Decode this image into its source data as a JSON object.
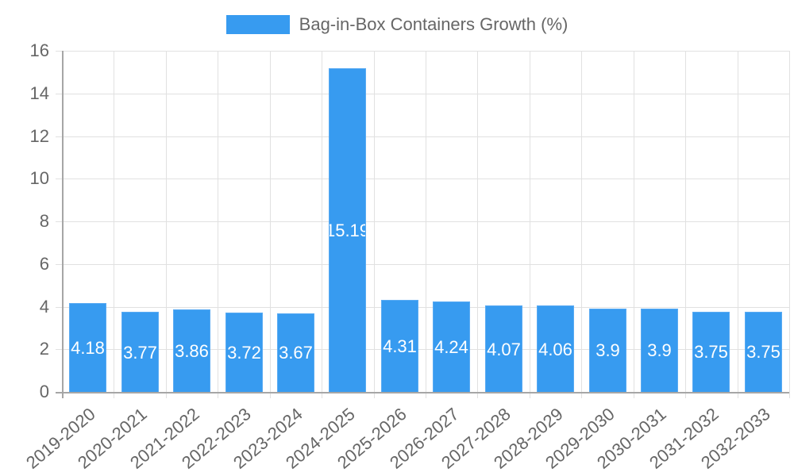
{
  "chart_data": {
    "type": "bar",
    "title": "",
    "xlabel": "",
    "ylabel": "",
    "ylim": [
      0,
      16
    ],
    "yticks": [
      0,
      2,
      4,
      6,
      8,
      10,
      12,
      14,
      16
    ],
    "grid": true,
    "legend_position": "top",
    "categories": [
      "2019-2020",
      "2020-2021",
      "2021-2022",
      "2022-2023",
      "2023-2024",
      "2024-2025",
      "2025-2026",
      "2026-2027",
      "2027-2028",
      "2028-2029",
      "2029-2030",
      "2030-2031",
      "2031-2032",
      "2032-2033"
    ],
    "series": [
      {
        "name": "Bag-in-Box Containers Growth (%)",
        "color": "#379bf0",
        "values": [
          4.18,
          3.77,
          3.86,
          3.72,
          3.67,
          15.19,
          4.31,
          4.24,
          4.07,
          4.06,
          3.9,
          3.9,
          3.75,
          3.75
        ],
        "data_labels": [
          "4.18",
          "3.77",
          "3.86",
          "3.72",
          "3.67",
          "15.19",
          "4.31",
          "4.24",
          "4.07",
          "4.06",
          "3.9",
          "3.9",
          "3.75",
          "3.75"
        ]
      }
    ]
  },
  "legend": {
    "label": "Bag-in-Box Containers Growth (%)",
    "color": "#379bf0"
  }
}
